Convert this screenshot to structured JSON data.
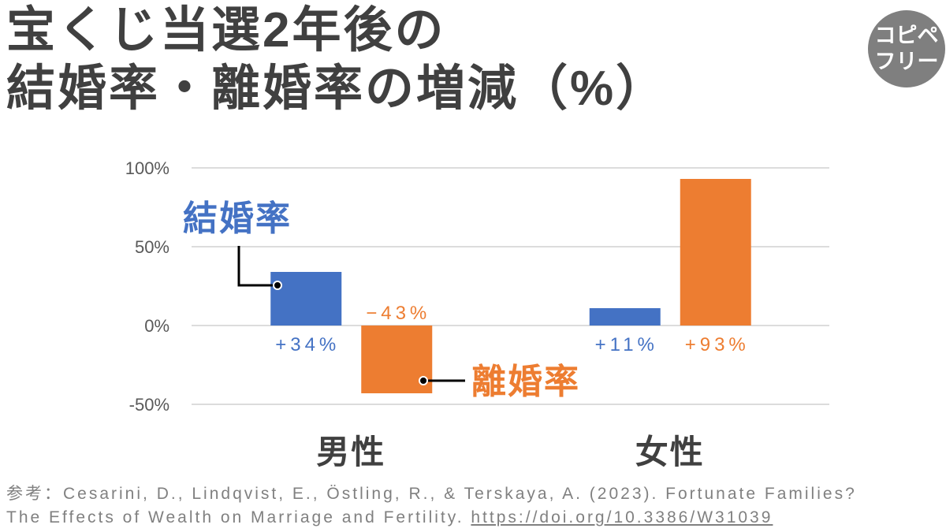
{
  "badge": {
    "line1": "コピペ",
    "line2": "フリー",
    "color": "#7f7f7f"
  },
  "chart_data": {
    "type": "bar",
    "title": [
      "宝くじ当選2年後の",
      "結婚率・離婚率の増減（%）"
    ],
    "categories": [
      "男性",
      "女性"
    ],
    "series": [
      {
        "name": "結婚率",
        "values": [
          34,
          11
        ],
        "labels": [
          "+34%",
          "+11%"
        ],
        "color": "#4472C4"
      },
      {
        "name": "離婚率",
        "values": [
          -43,
          93
        ],
        "labels": [
          "−43%",
          "+93%"
        ],
        "color": "#ED7D31"
      }
    ],
    "xlabel": "",
    "ylabel": "",
    "ylim": [
      -50,
      100
    ],
    "yticks": [
      100,
      50,
      0,
      -50
    ],
    "ytick_labels": [
      "100%",
      "50%",
      "0%",
      "-50%"
    ],
    "grid": true
  },
  "footer": {
    "line1": "参考：Cesarini, D., Lindqvist, E., Östling, R., & Terskaya, A. (2023). Fortunate Families?",
    "line2_text": "The Effects of Wealth on Marriage and Fertility.",
    "doi_url": "https://doi.org/10.3386/W31039"
  }
}
